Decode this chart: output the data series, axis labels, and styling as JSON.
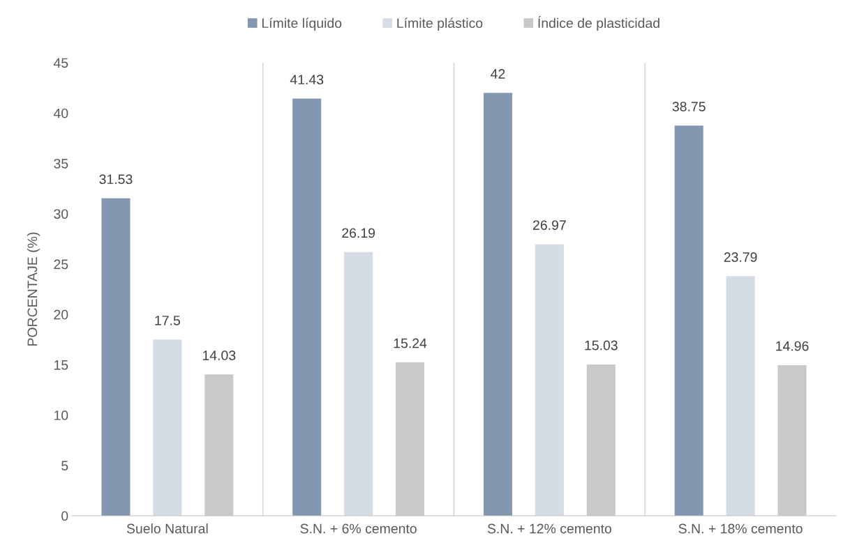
{
  "chart_data": {
    "type": "bar",
    "ylabel": "PORCENTAJE (%)",
    "categories": [
      "Suelo Natural",
      "S.N. + 6% cemento",
      "S.N. + 12% cemento",
      "S.N. + 18% cemento"
    ],
    "series": [
      {
        "name": "Límite líquido",
        "color": "#8497b0",
        "values": [
          31.53,
          41.43,
          42,
          38.75
        ]
      },
      {
        "name": "Límite plástico",
        "color": "#d6dce5",
        "values": [
          17.5,
          26.19,
          26.97,
          23.79
        ]
      },
      {
        "name": "Índice de plasticidad",
        "color": "#c9c9c9",
        "values": [
          14.03,
          15.24,
          15.03,
          14.96
        ]
      }
    ],
    "ylim": [
      0,
      45
    ],
    "yticks": [
      0,
      5,
      10,
      15,
      20,
      25,
      30,
      35,
      40,
      45
    ],
    "grid": "x",
    "legend": "top",
    "data_labels": true
  }
}
